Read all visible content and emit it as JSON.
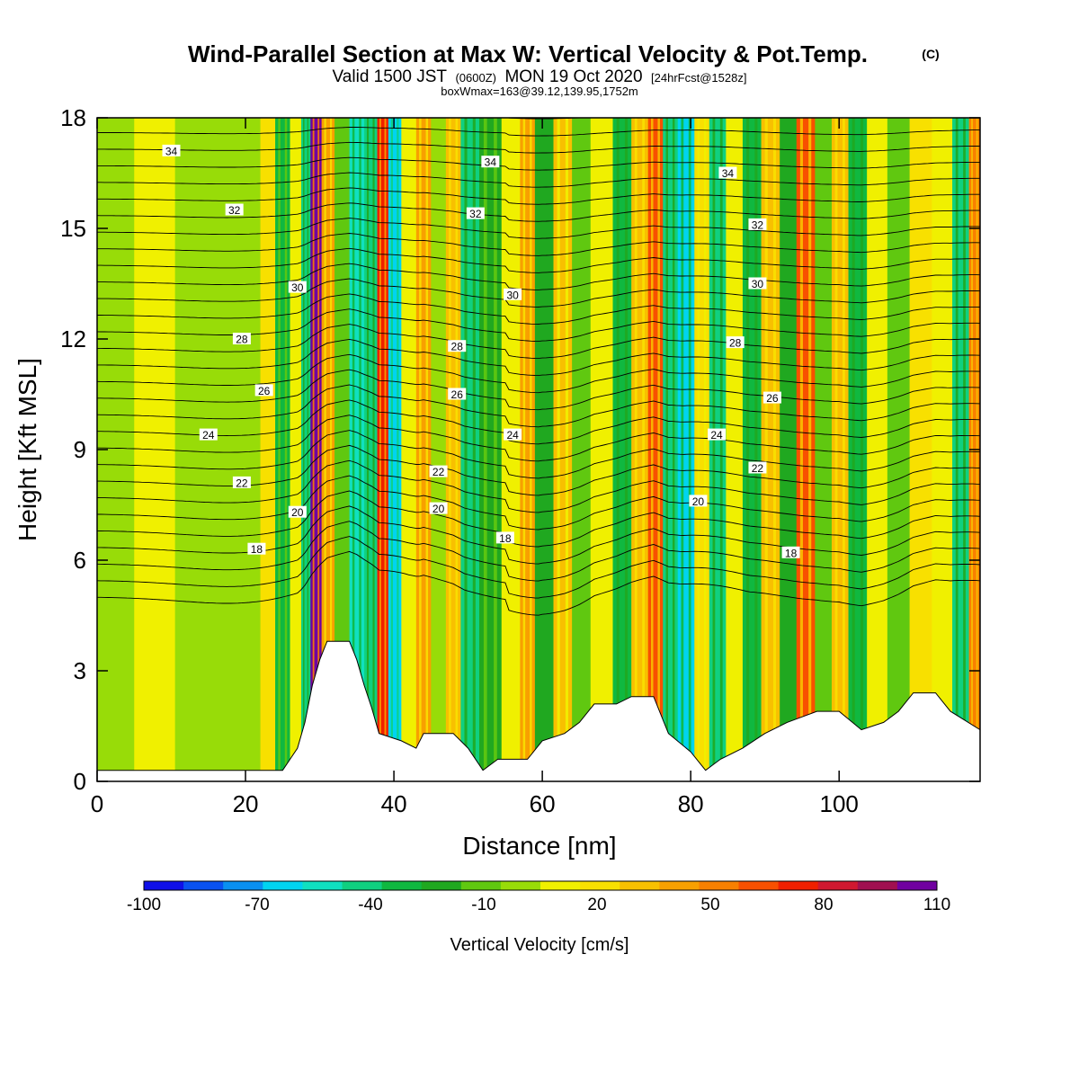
{
  "chart_data": {
    "type": "heatmap",
    "title": "Wind-Parallel Section at Max W: Vertical Velocity & Pot.Temp.",
    "title_mark": "(C)",
    "subtitle": {
      "valid_prefix": "Valid 1500 JST",
      "utc": "(0600Z)",
      "date": "MON 19 Oct 2020",
      "forecast": "[24hrFcst@1528z]"
    },
    "box_line": "boxWmax=163@39.12,139.95,1752m",
    "xlabel": "Distance [nm]",
    "ylabel": "Height [Kft MSL]",
    "xlim": [
      0,
      119
    ],
    "ylim": [
      0,
      18
    ],
    "x_ticks": [
      "0",
      "20",
      "40",
      "60",
      "80",
      "100"
    ],
    "y_ticks": [
      "0",
      "3",
      "6",
      "9",
      "12",
      "15",
      "18"
    ],
    "colorbar": {
      "title": "Vertical Velocity [cm/s]",
      "labels": [
        "-100",
        "-70",
        "-40",
        "-10",
        "20",
        "50",
        "80",
        "110"
      ],
      "colors": [
        "#1010e8",
        "#0a52f0",
        "#0a90f0",
        "#00d4f0",
        "#10e0c0",
        "#10d080",
        "#10b840",
        "#20a820",
        "#60c810",
        "#98dc08",
        "#f0f000",
        "#f8e000",
        "#f8c000",
        "#f8a000",
        "#f88000",
        "#f85000",
        "#f02000",
        "#d01830",
        "#a01050",
        "#7000a0"
      ]
    },
    "shading_bands": [
      {
        "x": 3,
        "w": -5
      },
      {
        "x": 7,
        "w": 8
      },
      {
        "x": 14,
        "w": 4
      },
      {
        "x": 21,
        "w": 2
      },
      {
        "x": 23,
        "w": 20
      },
      {
        "x": 25,
        "w": -28
      },
      {
        "x": 27,
        "w": 12
      },
      {
        "x": 28,
        "w": -38
      },
      {
        "x": 29.5,
        "w": 103
      },
      {
        "x": 31,
        "w": 45
      },
      {
        "x": 33,
        "w": -15
      },
      {
        "x": 35,
        "w": -55
      },
      {
        "x": 37,
        "w": -40
      },
      {
        "x": 38.5,
        "w": 72
      },
      {
        "x": 40,
        "w": -68
      },
      {
        "x": 42,
        "w": 5
      },
      {
        "x": 44,
        "w": 40
      },
      {
        "x": 46,
        "w": -5
      },
      {
        "x": 48,
        "w": 35
      },
      {
        "x": 50,
        "w": -40
      },
      {
        "x": 53,
        "w": -25
      },
      {
        "x": 56,
        "w": 15
      },
      {
        "x": 58,
        "w": 45
      },
      {
        "x": 60,
        "w": -18
      },
      {
        "x": 63,
        "w": 28
      },
      {
        "x": 65,
        "w": -10
      },
      {
        "x": 68,
        "w": 15
      },
      {
        "x": 71,
        "w": -35
      },
      {
        "x": 73,
        "w": 30
      },
      {
        "x": 75.5,
        "w": 62
      },
      {
        "x": 77,
        "w": -38
      },
      {
        "x": 79.5,
        "w": -65
      },
      {
        "x": 81.5,
        "w": 25
      },
      {
        "x": 83.5,
        "w": -45
      },
      {
        "x": 86,
        "w": 15
      },
      {
        "x": 88,
        "w": -30
      },
      {
        "x": 91,
        "w": 35
      },
      {
        "x": 93,
        "w": -20
      },
      {
        "x": 95.5,
        "w": 58
      },
      {
        "x": 98,
        "w": -12
      },
      {
        "x": 100,
        "w": 30
      },
      {
        "x": 102.5,
        "w": -32
      },
      {
        "x": 105,
        "w": 10
      },
      {
        "x": 108,
        "w": -12
      },
      {
        "x": 111,
        "w": 22
      },
      {
        "x": 114,
        "w": 5
      },
      {
        "x": 116.5,
        "w": -45
      },
      {
        "x": 118.5,
        "w": 55
      }
    ],
    "terrain": [
      [
        0,
        0.3
      ],
      [
        25,
        0.3
      ],
      [
        26,
        0.6
      ],
      [
        27,
        0.9
      ],
      [
        28,
        1.6
      ],
      [
        29,
        2.6
      ],
      [
        30,
        3.3
      ],
      [
        31,
        3.8
      ],
      [
        34,
        3.8
      ],
      [
        35,
        3.3
      ],
      [
        36,
        2.6
      ],
      [
        37,
        2.0
      ],
      [
        38,
        1.3
      ],
      [
        41,
        1.1
      ],
      [
        43,
        0.9
      ],
      [
        44,
        1.3
      ],
      [
        48,
        1.3
      ],
      [
        50,
        0.9
      ],
      [
        52,
        0.3
      ],
      [
        54,
        0.6
      ],
      [
        58,
        0.6
      ],
      [
        60,
        1.1
      ],
      [
        63,
        1.3
      ],
      [
        65,
        1.6
      ],
      [
        67,
        2.1
      ],
      [
        70,
        2.1
      ],
      [
        72,
        2.3
      ],
      [
        75,
        2.3
      ],
      [
        77,
        1.3
      ],
      [
        80,
        0.8
      ],
      [
        82,
        0.3
      ],
      [
        84,
        0.6
      ],
      [
        87,
        0.9
      ],
      [
        90,
        1.3
      ],
      [
        93,
        1.6
      ],
      [
        97,
        1.9
      ],
      [
        100,
        1.9
      ],
      [
        103,
        1.4
      ],
      [
        106,
        1.6
      ],
      [
        108,
        1.9
      ],
      [
        110,
        2.4
      ],
      [
        113,
        2.4
      ],
      [
        115,
        1.9
      ],
      [
        119,
        1.4
      ]
    ],
    "contour_labels": [
      {
        "text": "34",
        "x": 10,
        "y": 17.1
      },
      {
        "text": "32",
        "x": 18.5,
        "y": 15.5
      },
      {
        "text": "30",
        "x": 27,
        "y": 13.4
      },
      {
        "text": "28",
        "x": 19.5,
        "y": 12.0
      },
      {
        "text": "26",
        "x": 22.5,
        "y": 10.6
      },
      {
        "text": "24",
        "x": 15,
        "y": 9.4
      },
      {
        "text": "22",
        "x": 19.5,
        "y": 8.1
      },
      {
        "text": "20",
        "x": 27,
        "y": 7.3
      },
      {
        "text": "18",
        "x": 21.5,
        "y": 6.3
      },
      {
        "text": "34",
        "x": 53,
        "y": 16.8
      },
      {
        "text": "32",
        "x": 51,
        "y": 15.4
      },
      {
        "text": "30",
        "x": 56,
        "y": 13.2
      },
      {
        "text": "28",
        "x": 48.5,
        "y": 11.8
      },
      {
        "text": "26",
        "x": 48.5,
        "y": 10.5
      },
      {
        "text": "24",
        "x": 56,
        "y": 9.4
      },
      {
        "text": "22",
        "x": 46,
        "y": 8.4
      },
      {
        "text": "20",
        "x": 46,
        "y": 7.4
      },
      {
        "text": "18",
        "x": 55,
        "y": 6.6
      },
      {
        "text": "34",
        "x": 85,
        "y": 16.5
      },
      {
        "text": "32",
        "x": 89,
        "y": 15.1
      },
      {
        "text": "30",
        "x": 89,
        "y": 13.5
      },
      {
        "text": "28",
        "x": 86,
        "y": 11.9
      },
      {
        "text": "26",
        "x": 91,
        "y": 10.4
      },
      {
        "text": "24",
        "x": 83.5,
        "y": 9.4
      },
      {
        "text": "22",
        "x": 89,
        "y": 8.5
      },
      {
        "text": "20",
        "x": 81,
        "y": 7.6
      },
      {
        "text": "18",
        "x": 93.5,
        "y": 6.2
      }
    ]
  }
}
